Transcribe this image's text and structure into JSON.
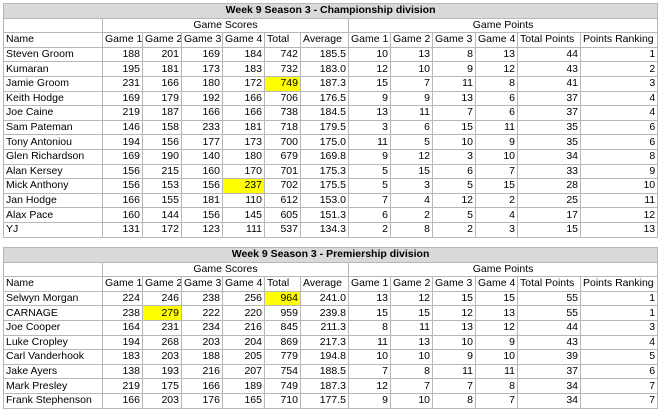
{
  "tables": [
    {
      "title": "Week 9 Season 3 - Championship division",
      "groups": [
        "Game Scores",
        "Game Points"
      ],
      "columns": [
        "Name",
        "Game 1",
        "Game 2",
        "Game 3",
        "Game 4",
        "Total",
        "Average",
        "Game 1",
        "Game 2",
        "Game 3",
        "Game 4",
        "Total Points",
        "Points Ranking"
      ],
      "rows": [
        [
          "Steven Groom",
          "188",
          "201",
          "169",
          "184",
          "742",
          "185.5",
          "10",
          "13",
          "8",
          "13",
          "44",
          "1"
        ],
        [
          "Kumaran",
          "195",
          "181",
          "173",
          "183",
          "732",
          "183.0",
          "12",
          "10",
          "9",
          "12",
          "43",
          "2"
        ],
        [
          "Jamie Groom",
          "231",
          "166",
          "180",
          "172",
          "749",
          "187.3",
          "15",
          "7",
          "11",
          "8",
          "41",
          "3"
        ],
        [
          "Keith Hodge",
          "169",
          "179",
          "192",
          "166",
          "706",
          "176.5",
          "9",
          "9",
          "13",
          "6",
          "37",
          "4"
        ],
        [
          "Joe Caine",
          "219",
          "187",
          "166",
          "166",
          "738",
          "184.5",
          "13",
          "11",
          "7",
          "6",
          "37",
          "4"
        ],
        [
          "Sam Pateman",
          "146",
          "158",
          "233",
          "181",
          "718",
          "179.5",
          "3",
          "6",
          "15",
          "11",
          "35",
          "6"
        ],
        [
          "Tony Antoniou",
          "194",
          "156",
          "177",
          "173",
          "700",
          "175.0",
          "11",
          "5",
          "10",
          "9",
          "35",
          "6"
        ],
        [
          "Glen Richardson",
          "169",
          "190",
          "140",
          "180",
          "679",
          "169.8",
          "9",
          "12",
          "3",
          "10",
          "34",
          "8"
        ],
        [
          "Alan Kersey",
          "156",
          "215",
          "160",
          "170",
          "701",
          "175.3",
          "5",
          "15",
          "6",
          "7",
          "33",
          "9"
        ],
        [
          "Mick Anthony",
          "156",
          "153",
          "156",
          "237",
          "702",
          "175.5",
          "5",
          "3",
          "5",
          "15",
          "28",
          "10"
        ],
        [
          "Jan Hodge",
          "166",
          "155",
          "181",
          "110",
          "612",
          "153.0",
          "7",
          "4",
          "12",
          "2",
          "25",
          "11"
        ],
        [
          "Alax Pace",
          "160",
          "144",
          "156",
          "145",
          "605",
          "151.3",
          "6",
          "2",
          "5",
          "4",
          "17",
          "12"
        ],
        [
          "YJ",
          "131",
          "172",
          "123",
          "111",
          "537",
          "134.3",
          "2",
          "8",
          "2",
          "3",
          "15",
          "13"
        ]
      ],
      "highlight": {
        "color": "#ffff00",
        "cells": [
          [
            2,
            5
          ],
          [
            9,
            4
          ]
        ]
      }
    },
    {
      "title": "Week 9 Season 3 - Premiership division",
      "groups": [
        "Game Scores",
        "Game Points"
      ],
      "columns": [
        "Name",
        "Game 1",
        "Game 2",
        "Game 3",
        "Game 4",
        "Total",
        "Average",
        "Game 1",
        "Game 2",
        "Game 3",
        "Game 4",
        "Total Points",
        "Points Ranking"
      ],
      "rows": [
        [
          "Selwyn Morgan",
          "224",
          "246",
          "238",
          "256",
          "964",
          "241.0",
          "13",
          "12",
          "15",
          "15",
          "55",
          "1"
        ],
        [
          "CARNAGE",
          "238",
          "279",
          "222",
          "220",
          "959",
          "239.8",
          "15",
          "15",
          "12",
          "13",
          "55",
          "1"
        ],
        [
          "Joe Cooper",
          "164",
          "231",
          "234",
          "216",
          "845",
          "211.3",
          "8",
          "11",
          "13",
          "12",
          "44",
          "3"
        ],
        [
          "Luke Cropley",
          "194",
          "268",
          "203",
          "204",
          "869",
          "217.3",
          "11",
          "13",
          "10",
          "9",
          "43",
          "4"
        ],
        [
          "Carl Vanderhook",
          "183",
          "203",
          "188",
          "205",
          "779",
          "194.8",
          "10",
          "10",
          "9",
          "10",
          "39",
          "5"
        ],
        [
          "Jake Ayers",
          "138",
          "193",
          "216",
          "207",
          "754",
          "188.5",
          "7",
          "8",
          "11",
          "11",
          "37",
          "6"
        ],
        [
          "Mark Presley",
          "219",
          "175",
          "166",
          "189",
          "749",
          "187.3",
          "12",
          "7",
          "7",
          "8",
          "34",
          "7"
        ],
        [
          "Frank Stephenson",
          "166",
          "203",
          "176",
          "165",
          "710",
          "177.5",
          "9",
          "10",
          "8",
          "7",
          "34",
          "7"
        ]
      ],
      "highlight": {
        "color": "#ffff00",
        "cells": [
          [
            0,
            5
          ],
          [
            1,
            2
          ]
        ]
      }
    }
  ]
}
